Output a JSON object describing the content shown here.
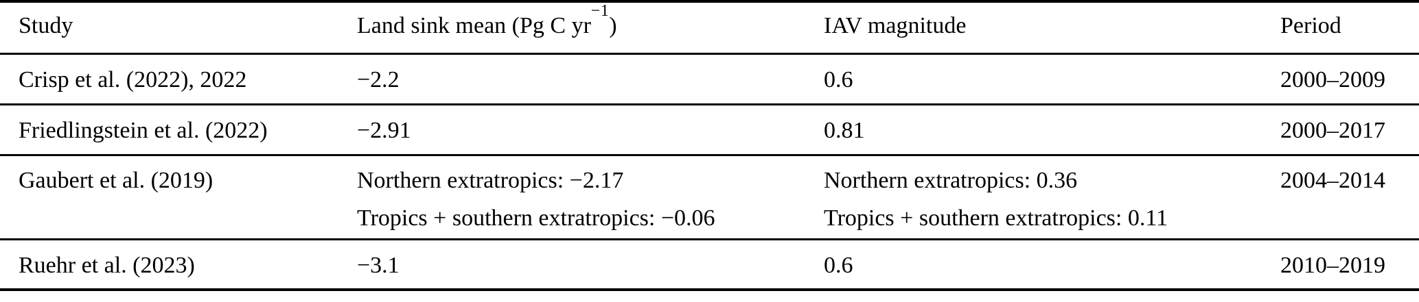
{
  "table": {
    "columns": {
      "study": "Study",
      "land_sink_prefix": "Land sink mean (Pg C yr",
      "land_sink_superscript": "−1",
      "land_sink_suffix": ")",
      "iav": "IAV magnitude",
      "period": "Period"
    },
    "rows": [
      {
        "study": "Crisp et al. (2022), 2022",
        "land_sink_mean": [
          "−2.2"
        ],
        "iav_magnitude": [
          "0.6"
        ],
        "period": "2000–2009"
      },
      {
        "study": "Friedlingstein et al. (2022)",
        "land_sink_mean": [
          "−2.91"
        ],
        "iav_magnitude": [
          "0.81"
        ],
        "period": "2000–2017"
      },
      {
        "study": "Gaubert et al. (2019)",
        "land_sink_mean": [
          "Northern extratropics: −2.17",
          "Tropics + southern extratropics: −0.06"
        ],
        "iav_magnitude": [
          "Northern extratropics: 0.36",
          "Tropics + southern extratropics: 0.11"
        ],
        "period": "2004–2014"
      },
      {
        "study": "Ruehr et al. (2023)",
        "land_sink_mean": [
          "−3.1"
        ],
        "iav_magnitude": [
          "0.6"
        ],
        "period": "2010–2019"
      }
    ]
  }
}
